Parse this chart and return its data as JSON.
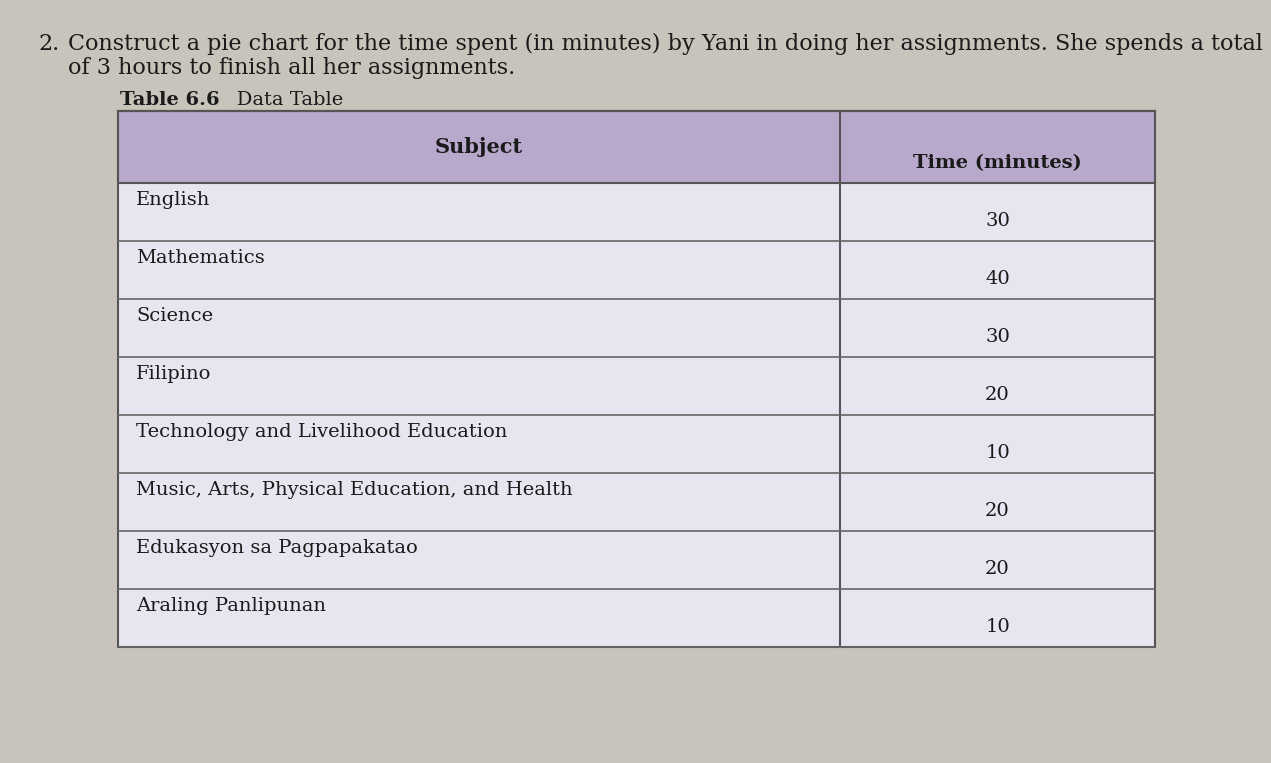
{
  "title_line1": "Construct a pie chart for the time spent (in minutes) by Yani in doing her assignments. She spends a total",
  "title_line2": "of 3 hours to finish all her assignments.",
  "number": "2.",
  "table_title_bold": "Table 6.6",
  "table_title_normal": "   Data Table",
  "col_header1": "Subject",
  "col_header2": "Time (minutes)",
  "subjects": [
    "English",
    "Mathematics",
    "Science",
    "Filipino",
    "Technology and Livelihood Education",
    "Music, Arts, Physical Education, and Health",
    "Edukasyon sa Pagpapakatao",
    "Araling Panlipunan"
  ],
  "times": [
    30,
    40,
    30,
    20,
    10,
    20,
    20,
    10
  ],
  "header_bg_color": "#b8a8cc",
  "table_bg_color": "#e8e4f0",
  "page_bg_color": "#c8c4bc",
  "text_color": "#1a1a1a",
  "title_color": "#1a1a1a",
  "title_fontsize": 16,
  "table_title_fontsize": 14,
  "header_fontsize": 15,
  "cell_fontsize": 14
}
